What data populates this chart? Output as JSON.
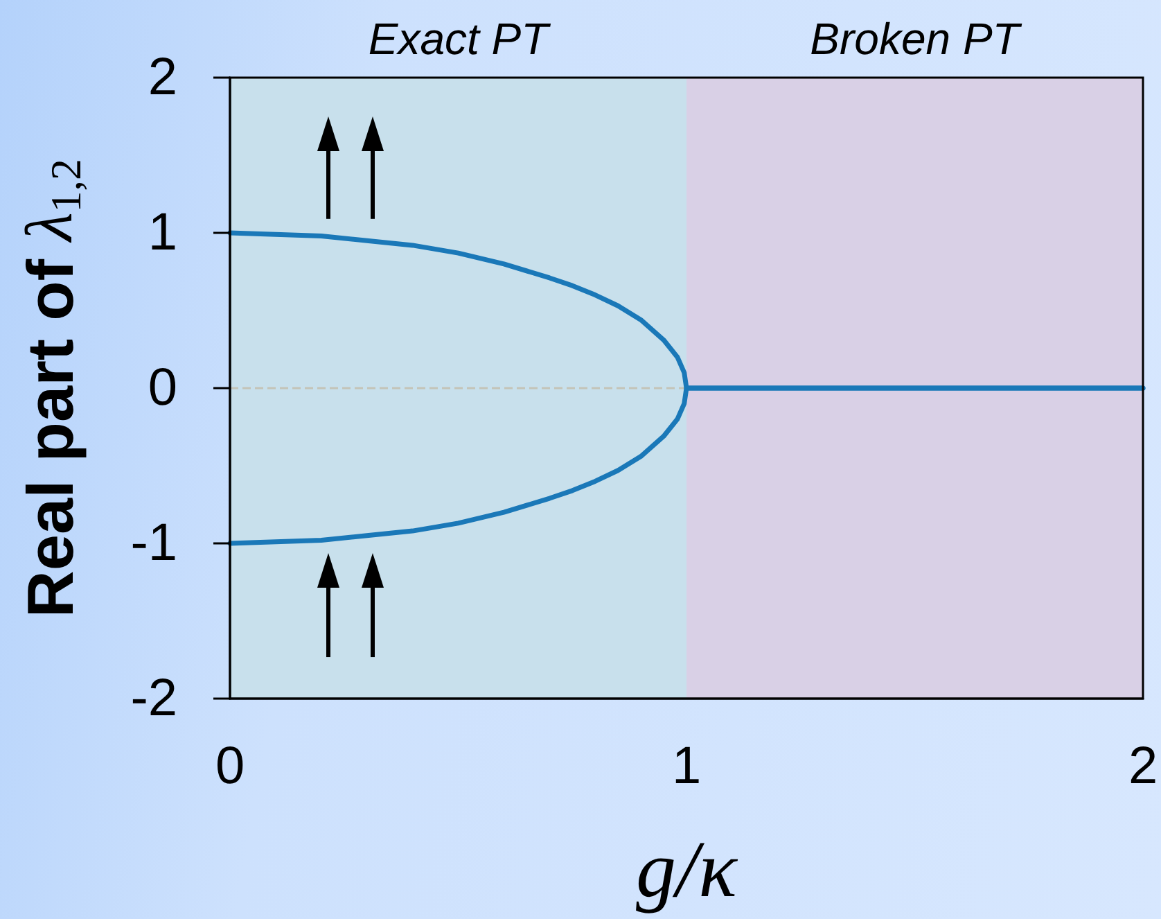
{
  "chart_data": {
    "type": "line",
    "xlabel": "g/κ",
    "ylabel": "Real part of λ$_{1,2}$",
    "xlim": [
      0,
      2
    ],
    "ylim": [
      -2,
      2
    ],
    "xticks": [
      0,
      1,
      2
    ],
    "yticks": [
      2,
      1,
      0,
      -1,
      -2
    ],
    "grid": false,
    "marker": "none",
    "x": [
      0,
      0.1,
      0.2,
      0.3,
      0.4,
      0.5,
      0.6,
      0.7,
      0.75,
      0.8,
      0.85,
      0.9,
      0.95,
      0.98,
      0.995,
      1,
      2
    ],
    "series": [
      {
        "color": "#1a78b8",
        "values": [
          1,
          0.99,
          0.98,
          0.95,
          0.92,
          0.87,
          0.8,
          0.71,
          0.66,
          0.6,
          0.53,
          0.44,
          0.31,
          0.2,
          0.1,
          0,
          0
        ]
      },
      {
        "color": "#1a78b8",
        "values": [
          -1,
          -0.99,
          -0.98,
          -0.95,
          -0.92,
          -0.87,
          -0.8,
          -0.71,
          -0.66,
          -0.6,
          -0.53,
          -0.44,
          -0.31,
          -0.2,
          -0.1,
          0,
          0
        ]
      }
    ],
    "bands": [
      {
        "axis": "x",
        "from": 0,
        "to": 1,
        "label": "Exact PT",
        "color": "#c8e0ec"
      },
      {
        "axis": "x",
        "from": 1,
        "to": 2,
        "label": "Broken PT",
        "color": "#d9d0e6"
      }
    ],
    "ref_lines": [
      {
        "axis": "y",
        "value": 0,
        "color": "#c4c4b8",
        "line_style": "dashed"
      }
    ]
  }
}
